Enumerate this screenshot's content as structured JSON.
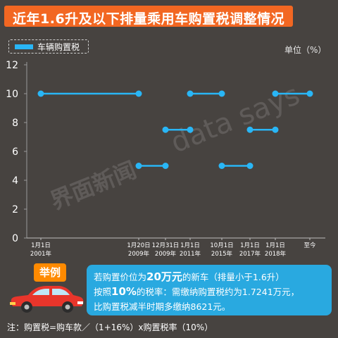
{
  "title": "近年1.6升及以下排量乘用车购置税调整情况",
  "unit_label": "单位（%）",
  "colors": {
    "background": "#474340",
    "title_bar": "#f26722",
    "series": "#29b6f6",
    "callout": "#29a9e0",
    "example_badge": "#ff8a00",
    "car": "#e8352b"
  },
  "watermark": {
    "logo": "界面新闻",
    "brand": "data says"
  },
  "chart_data": {
    "type": "line",
    "legend": [
      "车辆购置税"
    ],
    "legend_position": "top-left",
    "ylim": [
      0,
      12
    ],
    "yticks": [
      0,
      2,
      4,
      6,
      8,
      10,
      12
    ],
    "grid": false,
    "x_categories": [
      {
        "lines": [
          "1月1日",
          "2001年"
        ]
      },
      {
        "lines": [
          "1月20日",
          "2009年"
        ]
      },
      {
        "lines": [
          "12月31日",
          "2009年"
        ]
      },
      {
        "lines": [
          "1月1日",
          "2011年"
        ]
      },
      {
        "lines": [
          "10月1日",
          "2015年"
        ]
      },
      {
        "lines": [
          "1月1日",
          "2017年"
        ]
      },
      {
        "lines": [
          "1月1日",
          "2018年"
        ]
      },
      {
        "lines": [
          "至今"
        ]
      }
    ],
    "series": [
      {
        "name": "车辆购置税",
        "segments": [
          {
            "from": 0,
            "to": 1,
            "value": 10
          },
          {
            "from": 1,
            "to": 2,
            "value": 5
          },
          {
            "from": 2,
            "to": 3,
            "value": 7.5
          },
          {
            "from": 3,
            "to": 4,
            "value": 10
          },
          {
            "from": 4,
            "to": 5,
            "value": 5
          },
          {
            "from": 5,
            "to": 6,
            "value": 7.5
          },
          {
            "from": 6,
            "to": 7,
            "value": 10
          }
        ]
      }
    ]
  },
  "example": {
    "badge": "举例",
    "line1_pre": "若购置价位为",
    "line1_hl": "20万元",
    "line1_post": "的新车（排量小于1.6升）",
    "line2_pre": "按照",
    "line2_hl": "10%",
    "line2_post": "的税率：需缴纳购置税约为1.7241万元，",
    "line3": "比购置税减半时期多缴纳8621元。"
  },
  "footnote": "注：购置税=购车款／（1+16%）x购置税率（10%）"
}
